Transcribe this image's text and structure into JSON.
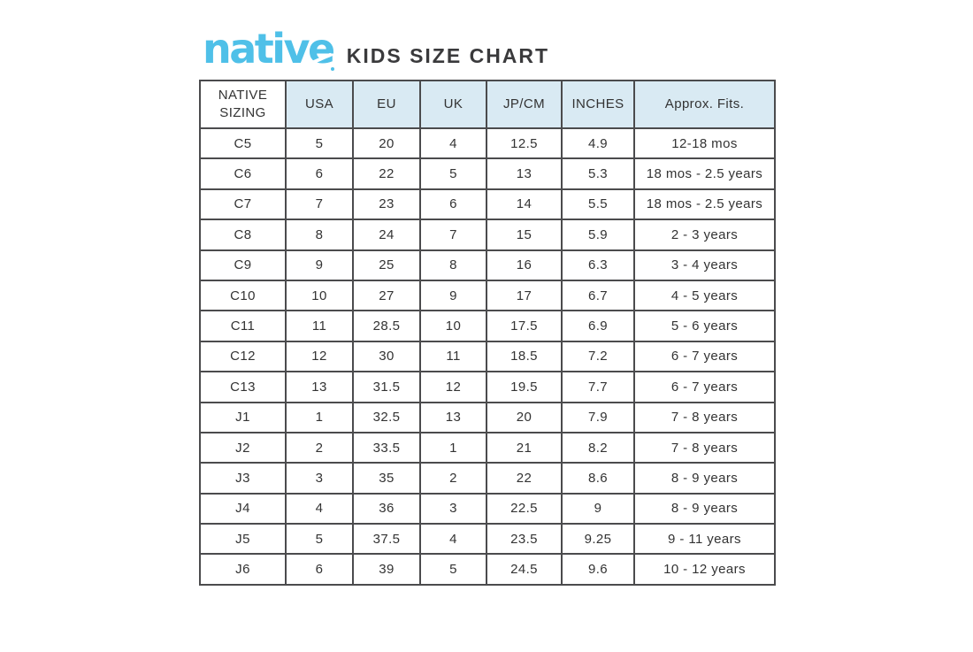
{
  "page": {
    "background": "#ffffff"
  },
  "header": {
    "logo_text": "native",
    "title": "KIDS SIZE CHART"
  },
  "colors": {
    "brand_blue": "#4FC0E8",
    "header_fill": "#D9EAF3",
    "border": "#4B4B4D",
    "text": "#333333"
  },
  "chart_data": {
    "type": "table",
    "title": "native KIDS SIZE CHART",
    "columns": [
      "NATIVE SIZING",
      "USA",
      "EU",
      "UK",
      "JP/CM",
      "INCHES",
      "Approx. Fits."
    ],
    "rows": [
      [
        "C5",
        "5",
        "20",
        "4",
        "12.5",
        "4.9",
        "12-18 mos"
      ],
      [
        "C6",
        "6",
        "22",
        "5",
        "13",
        "5.3",
        "18 mos - 2.5 years"
      ],
      [
        "C7",
        "7",
        "23",
        "6",
        "14",
        "5.5",
        "18 mos - 2.5 years"
      ],
      [
        "C8",
        "8",
        "24",
        "7",
        "15",
        "5.9",
        "2 - 3 years"
      ],
      [
        "C9",
        "9",
        "25",
        "8",
        "16",
        "6.3",
        "3 - 4 years"
      ],
      [
        "C10",
        "10",
        "27",
        "9",
        "17",
        "6.7",
        "4 - 5 years"
      ],
      [
        "C11",
        "11",
        "28.5",
        "10",
        "17.5",
        "6.9",
        "5 - 6 years"
      ],
      [
        "C12",
        "12",
        "30",
        "11",
        "18.5",
        "7.2",
        "6 - 7 years"
      ],
      [
        "C13",
        "13",
        "31.5",
        "12",
        "19.5",
        "7.7",
        "6 - 7 years"
      ],
      [
        "J1",
        "1",
        "32.5",
        "13",
        "20",
        "7.9",
        "7 - 8 years"
      ],
      [
        "J2",
        "2",
        "33.5",
        "1",
        "21",
        "8.2",
        "7 - 8 years"
      ],
      [
        "J3",
        "3",
        "35",
        "2",
        "22",
        "8.6",
        "8 - 9 years"
      ],
      [
        "J4",
        "4",
        "36",
        "3",
        "22.5",
        "9",
        "8 - 9 years"
      ],
      [
        "J5",
        "5",
        "37.5",
        "4",
        "23.5",
        "9.25",
        "9 - 11 years"
      ],
      [
        "J6",
        "6",
        "39",
        "5",
        "24.5",
        "9.6",
        "10 - 12 years"
      ]
    ]
  }
}
